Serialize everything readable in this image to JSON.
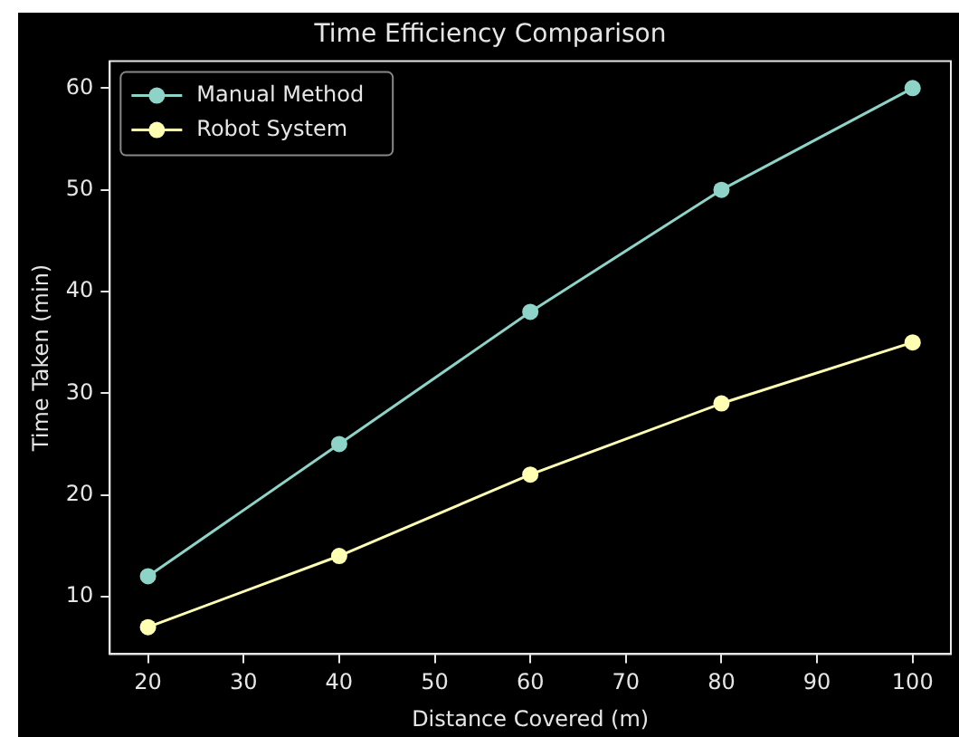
{
  "chart_data": {
    "type": "line",
    "title": "Time Efficiency Comparison",
    "xlabel": "Distance Covered (m)",
    "ylabel": "Time Taken (min)",
    "x": [
      20,
      40,
      60,
      80,
      100
    ],
    "series": [
      {
        "name": "Manual Method",
        "color": "#8dd3c7",
        "values": [
          12,
          25,
          38,
          50,
          60
        ]
      },
      {
        "name": "Robot System",
        "color": "#feffb3",
        "values": [
          7,
          14,
          22,
          29,
          35
        ]
      }
    ],
    "xlim": [
      16,
      104
    ],
    "xticks": [
      20,
      30,
      40,
      50,
      60,
      70,
      80,
      90,
      100
    ],
    "ylim": [
      4.35,
      62.65
    ],
    "yticks": [
      10,
      20,
      30,
      40,
      50,
      60
    ],
    "legend": "top left",
    "marker": "circle",
    "line_style": "solid",
    "grid": false
  }
}
